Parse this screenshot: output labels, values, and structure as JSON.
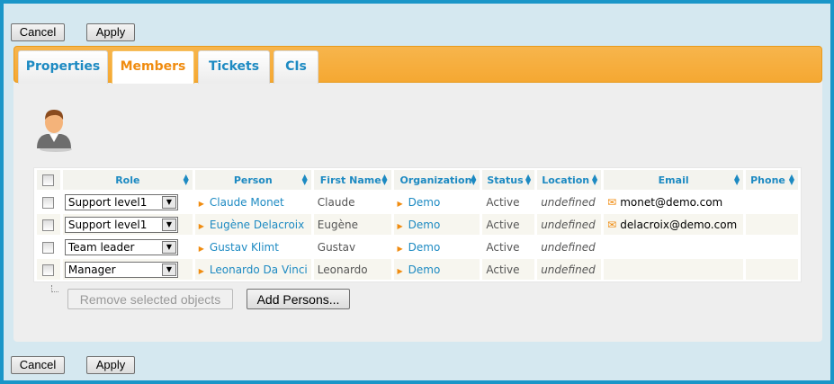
{
  "toolbar": {
    "cancel": "Cancel",
    "apply": "Apply"
  },
  "tabs": [
    {
      "label": "Properties"
    },
    {
      "label": "Members"
    },
    {
      "label": "Tickets"
    },
    {
      "label": "CIs"
    }
  ],
  "active_tab": "Members",
  "table": {
    "headers": [
      "Role",
      "Person",
      "First Name",
      "Organization",
      "Status",
      "Location",
      "Email",
      "Phone"
    ],
    "rows": [
      {
        "role": "Support level1",
        "person": "Claude Monet",
        "first_name": "Claude",
        "organization": "Demo",
        "status": "Active",
        "location": "undefined",
        "email": "monet@demo.com",
        "phone": ""
      },
      {
        "role": "Support level1",
        "person": "Eugène Delacroix",
        "first_name": "Eugène",
        "organization": "Demo",
        "status": "Active",
        "location": "undefined",
        "email": "delacroix@demo.com",
        "phone": ""
      },
      {
        "role": "Team leader",
        "person": "Gustav Klimt",
        "first_name": "Gustav",
        "organization": "Demo",
        "status": "Active",
        "location": "undefined",
        "email": "",
        "phone": ""
      },
      {
        "role": "Manager",
        "person": "Leonardo Da Vinci",
        "first_name": "Leonardo",
        "organization": "Demo",
        "status": "Active",
        "location": "undefined",
        "email": "",
        "phone": ""
      }
    ]
  },
  "actions": {
    "remove": "Remove selected objects",
    "add": "Add Persons..."
  },
  "colors": {
    "border": "#1a96c8",
    "accent": "#f5a832",
    "link": "#1d8ac2"
  }
}
